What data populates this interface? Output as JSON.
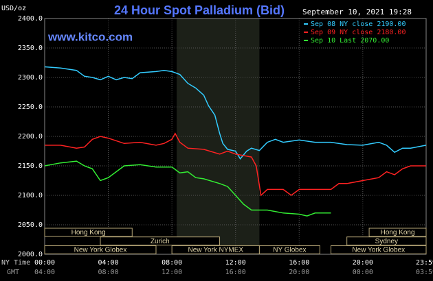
{
  "chart_data": {
    "type": "line",
    "title": "24 Hour Spot Palladium (Bid)",
    "unit_label": "USD/oz",
    "watermark": "www.kitco.com",
    "timestamp": "September 10, 2021 19:28",
    "x_axis_label": "NY Time",
    "x2_axis_label": "GMT",
    "xlim": [
      0,
      23.983
    ],
    "ylim": [
      2000,
      2400
    ],
    "yticks": [
      {
        "value": 2000,
        "label": "2000.0"
      },
      {
        "value": 2050,
        "label": "2050.0"
      },
      {
        "value": 2100,
        "label": "2100.0"
      },
      {
        "value": 2150,
        "label": "2150.0"
      },
      {
        "value": 2200,
        "label": "2200.0"
      },
      {
        "value": 2250,
        "label": "2250.0"
      },
      {
        "value": 2300,
        "label": "2300.0"
      },
      {
        "value": 2350,
        "label": "2350.0"
      },
      {
        "value": 2400,
        "label": "2400.0"
      }
    ],
    "xticks": [
      {
        "value": 0,
        "label": "00:00"
      },
      {
        "value": 4,
        "label": "04:00"
      },
      {
        "value": 8,
        "label": "08:00"
      },
      {
        "value": 12,
        "label": "12:00"
      },
      {
        "value": 16,
        "label": "16:00"
      },
      {
        "value": 20,
        "label": "20:00"
      },
      {
        "value": 23.983,
        "label": "23:59"
      }
    ],
    "x2ticks": [
      {
        "value": 0,
        "label": "04:00"
      },
      {
        "value": 4,
        "label": "08:00"
      },
      {
        "value": 8,
        "label": "12:00"
      },
      {
        "value": 12,
        "label": "16:00"
      },
      {
        "value": 16,
        "label": "20:00"
      },
      {
        "value": 20,
        "label": "00:00"
      },
      {
        "value": 23.983,
        "label": "03:59"
      }
    ],
    "grid": true,
    "shade": [
      8.3,
      13.5
    ],
    "sessions": [
      {
        "label": "Hong Kong",
        "start": 0,
        "end": 5.5,
        "row": 0
      },
      {
        "label": "Zurich",
        "start": 3.5,
        "end": 11,
        "row": 1
      },
      {
        "label": "New York Globex",
        "start": 0,
        "end": 7,
        "row": 2
      },
      {
        "label": "New York NYMEX",
        "start": 8,
        "end": 13.5,
        "row": 2
      },
      {
        "label": "NY Globex",
        "start": 13.5,
        "end": 17.3,
        "row": 2
      },
      {
        "label": "Hong Kong",
        "start": 20.4,
        "end": 23.983,
        "row": 0
      },
      {
        "label": "Sydney",
        "start": 19,
        "end": 23.983,
        "row": 1
      },
      {
        "label": "New York Globex",
        "start": 18,
        "end": 23.983,
        "row": 2
      }
    ],
    "series": [
      {
        "name": "Sep 08 NY close 2190.00",
        "color": "#33ccff",
        "x": [
          0,
          1,
          2,
          2.5,
          3,
          3.5,
          4,
          4.5,
          5,
          5.5,
          6,
          7,
          7.5,
          8,
          8.5,
          9,
          9.5,
          10,
          10.3,
          10.7,
          11,
          11.2,
          11.5,
          12,
          12.3,
          12.7,
          13,
          13.5,
          14,
          14.5,
          15,
          16,
          17,
          18,
          19,
          20,
          21,
          21.5,
          22,
          22.5,
          23,
          23.983
        ],
        "values": [
          2318,
          2316,
          2312,
          2302,
          2300,
          2296,
          2302,
          2296,
          2300,
          2298,
          2308,
          2310,
          2312,
          2310,
          2305,
          2290,
          2282,
          2270,
          2252,
          2236,
          2205,
          2188,
          2178,
          2175,
          2162,
          2175,
          2180,
          2176,
          2190,
          2195,
          2190,
          2194,
          2190,
          2190,
          2186,
          2185,
          2190,
          2185,
          2173,
          2180,
          2180,
          2185
        ]
      },
      {
        "name": "Sep 09 NY close 2180.00",
        "color": "#ff2222",
        "x": [
          0,
          1,
          2,
          2.5,
          3,
          3.5,
          4,
          5,
          6,
          7,
          7.5,
          8,
          8.2,
          8.5,
          9,
          10,
          11,
          11.5,
          12,
          13,
          13.3,
          13.6,
          14,
          15,
          15.5,
          16,
          17,
          18,
          18.5,
          19,
          20,
          21,
          21.5,
          22,
          22.5,
          23,
          23.983
        ],
        "values": [
          2185,
          2185,
          2180,
          2182,
          2195,
          2200,
          2197,
          2188,
          2190,
          2185,
          2188,
          2195,
          2205,
          2190,
          2180,
          2178,
          2170,
          2175,
          2170,
          2165,
          2150,
          2100,
          2110,
          2110,
          2100,
          2110,
          2110,
          2110,
          2120,
          2120,
          2125,
          2130,
          2140,
          2135,
          2145,
          2150,
          2150
        ]
      },
      {
        "name": "Sep 10 Last 2070.00",
        "color": "#33ee33",
        "x": [
          0,
          1,
          2,
          2.5,
          3,
          3.5,
          4,
          5,
          6,
          7,
          8,
          8.5,
          9,
          9.5,
          10,
          11,
          11.5,
          12,
          12.5,
          13,
          14,
          15,
          16,
          16.5,
          17,
          17.5,
          18
        ],
        "values": [
          2150,
          2155,
          2158,
          2150,
          2145,
          2125,
          2130,
          2150,
          2152,
          2148,
          2148,
          2138,
          2140,
          2130,
          2128,
          2120,
          2115,
          2100,
          2085,
          2075,
          2075,
          2070,
          2068,
          2065,
          2070,
          2070,
          2070
        ]
      }
    ]
  }
}
